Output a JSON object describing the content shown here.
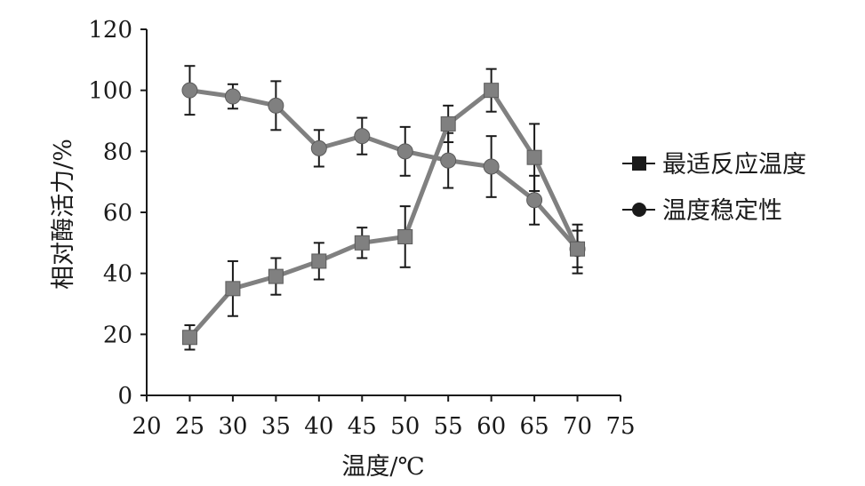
{
  "chart_data": {
    "type": "line",
    "title": "",
    "xlabel": "温度/℃",
    "ylabel": "相对酶活力/%",
    "xlim": [
      20,
      75
    ],
    "ylim": [
      0,
      120
    ],
    "x_ticks": [
      20,
      25,
      30,
      35,
      40,
      45,
      50,
      55,
      60,
      65,
      70,
      75
    ],
    "y_ticks": [
      0,
      20,
      40,
      60,
      80,
      100,
      120
    ],
    "grid": false,
    "legend_position": "right",
    "x": [
      25,
      30,
      35,
      40,
      45,
      50,
      55,
      60,
      65,
      70
    ],
    "series": [
      {
        "name": "最适反应温度",
        "marker": "square",
        "color": "#808080",
        "values": [
          19,
          35,
          39,
          44,
          50,
          52,
          89,
          100,
          78,
          48
        ],
        "error": [
          4,
          9,
          6,
          6,
          5,
          10,
          6,
          7,
          11,
          8
        ]
      },
      {
        "name": "温度稳定性",
        "marker": "circle",
        "color": "#808080",
        "values": [
          100,
          98,
          95,
          81,
          85,
          80,
          77,
          75,
          64,
          48
        ],
        "error": [
          8,
          4,
          8,
          6,
          6,
          8,
          9,
          10,
          8,
          6
        ]
      }
    ]
  }
}
